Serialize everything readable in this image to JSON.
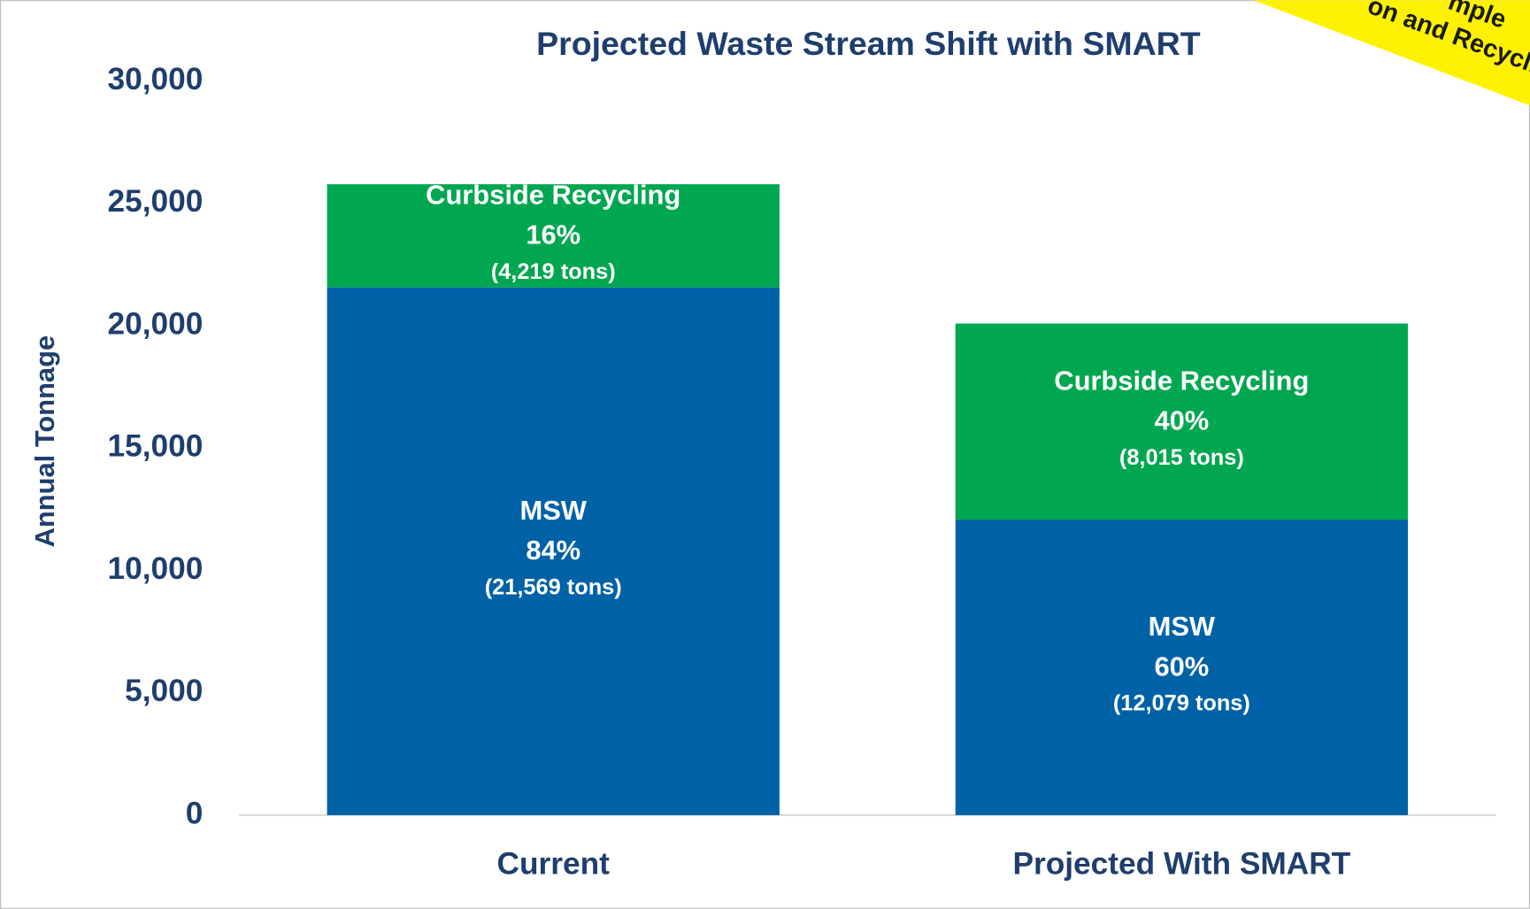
{
  "chart_data": {
    "type": "stacked_bar",
    "title": "Projected Waste Stream Shift with SMART",
    "y_label": "Annual Tonnage",
    "categories": [
      "Current",
      "Projected With SMART"
    ],
    "series": [
      {
        "name": "MSW",
        "color": "#0062a6",
        "values": [
          21569,
          12079
        ],
        "value_labels": [
          "(21,569 tons)",
          "(12,079 tons)"
        ],
        "percent_labels": [
          "84%",
          "60%"
        ]
      },
      {
        "name": "Curbside Recycling",
        "color": "#00a650",
        "values": [
          4219,
          8015
        ],
        "value_labels": [
          "(4,219 tons)",
          "(8,015 tons)"
        ],
        "percent_labels": [
          "16%",
          "40%"
        ]
      }
    ],
    "ylim": [
      0,
      30000
    ],
    "yticks": [
      {
        "value": 0,
        "label": "0"
      },
      {
        "value": 5000,
        "label": "5,000"
      },
      {
        "value": 10000,
        "label": "10,000"
      },
      {
        "value": 15000,
        "label": "15,000"
      },
      {
        "value": 20000,
        "label": "20,000"
      },
      {
        "value": 25000,
        "label": "25,000"
      },
      {
        "value": 30000,
        "label": "30,000"
      }
    ],
    "grid": false,
    "annotations": [
      "mple",
      "on and Recycli"
    ]
  }
}
